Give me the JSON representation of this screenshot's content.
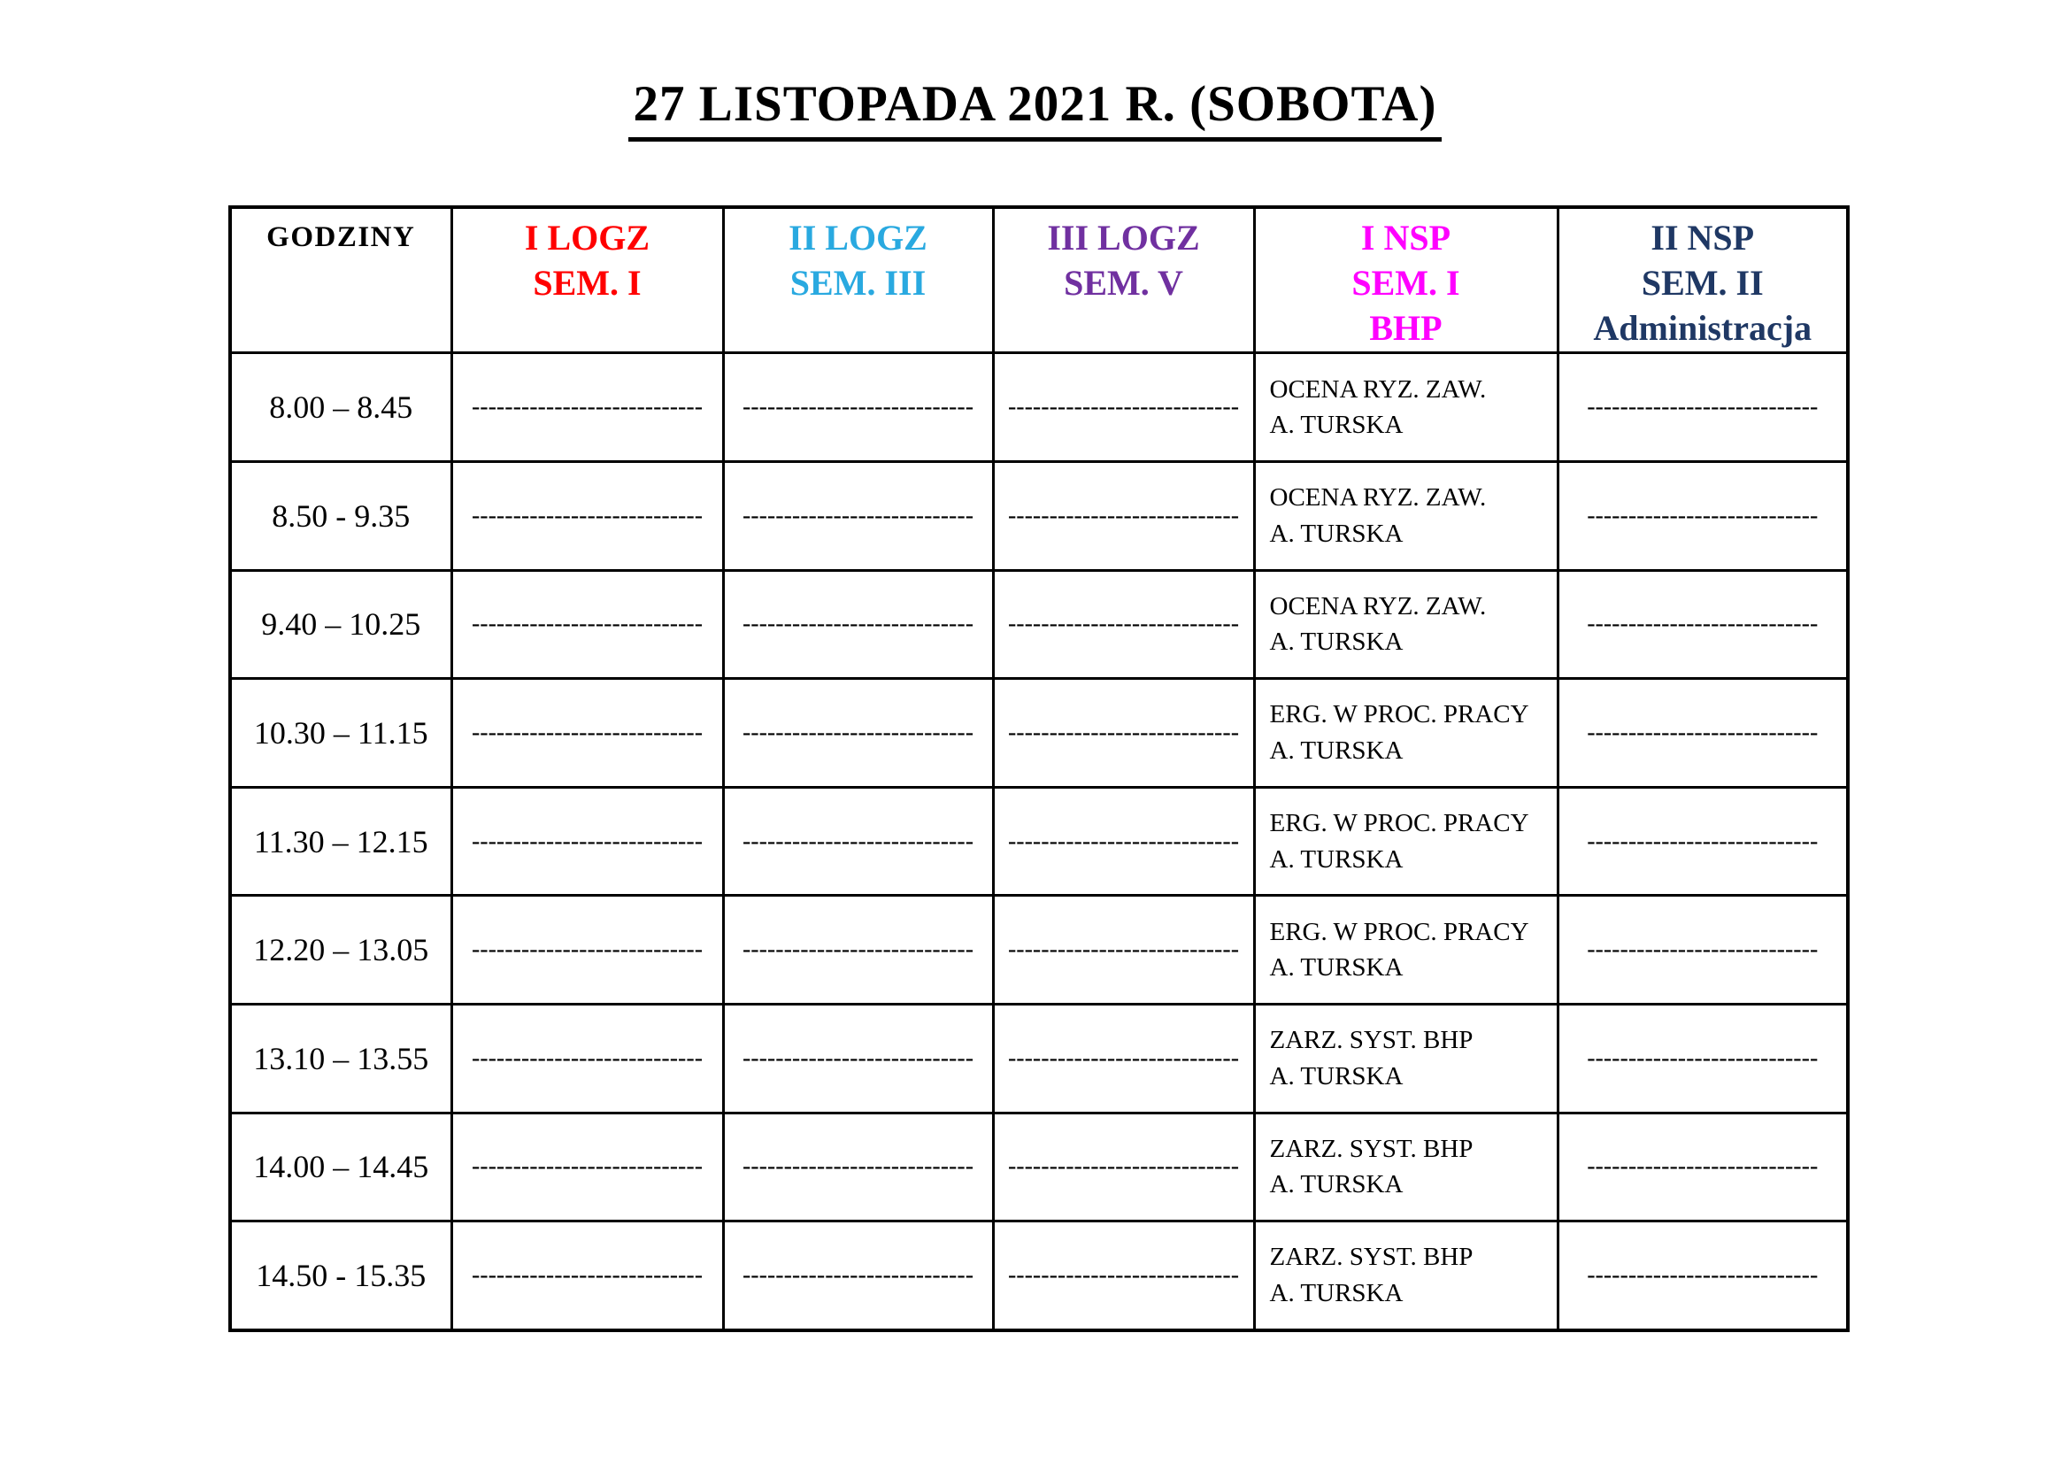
{
  "page": {
    "title": "27 LISTOPADA 2021 R. (SOBOTA)"
  },
  "table": {
    "empty_marker": "----------------------------",
    "columns": [
      {
        "id": "godziny",
        "lines": [
          "GODZINY"
        ],
        "color": "#000000"
      },
      {
        "id": "logz-1",
        "lines": [
          "I LOGZ",
          "SEM. I"
        ],
        "color": "#FF0000"
      },
      {
        "id": "logz-2",
        "lines": [
          "II LOGZ",
          "SEM. III"
        ],
        "color": "#29A9E0"
      },
      {
        "id": "logz-3",
        "lines": [
          "III LOGZ",
          "SEM. V"
        ],
        "color": "#7030A0"
      },
      {
        "id": "nsp-1",
        "lines": [
          "I NSP",
          "SEM. I",
          "BHP"
        ],
        "color": "#FF00FF"
      },
      {
        "id": "nsp-2",
        "lines": [
          "II NSP",
          "SEM. II",
          "Administracja"
        ],
        "color": "#1F3864"
      }
    ],
    "rows": [
      {
        "time": "8.00 – 8.45",
        "cells": [
          {
            "kind": "empty"
          },
          {
            "kind": "empty"
          },
          {
            "kind": "empty"
          },
          {
            "kind": "course",
            "lines": [
              "OCENA RYZ. ZAW.",
              "A. TURSKA"
            ]
          },
          {
            "kind": "empty"
          }
        ]
      },
      {
        "time": "8.50 - 9.35",
        "cells": [
          {
            "kind": "empty"
          },
          {
            "kind": "empty"
          },
          {
            "kind": "empty"
          },
          {
            "kind": "course",
            "lines": [
              "OCENA RYZ. ZAW.",
              "A. TURSKA"
            ]
          },
          {
            "kind": "empty"
          }
        ]
      },
      {
        "time": "9.40 – 10.25",
        "cells": [
          {
            "kind": "empty"
          },
          {
            "kind": "empty"
          },
          {
            "kind": "empty"
          },
          {
            "kind": "course",
            "lines": [
              "OCENA RYZ. ZAW.",
              "A. TURSKA"
            ]
          },
          {
            "kind": "empty"
          }
        ]
      },
      {
        "time": "10.30 – 11.15",
        "cells": [
          {
            "kind": "empty"
          },
          {
            "kind": "empty"
          },
          {
            "kind": "empty"
          },
          {
            "kind": "course",
            "lines": [
              "ERG. W PROC. PRACY",
              "A. TURSKA"
            ]
          },
          {
            "kind": "empty"
          }
        ]
      },
      {
        "time": "11.30 – 12.15",
        "cells": [
          {
            "kind": "empty"
          },
          {
            "kind": "empty"
          },
          {
            "kind": "empty"
          },
          {
            "kind": "course",
            "lines": [
              "ERG. W PROC. PRACY",
              "A. TURSKA"
            ]
          },
          {
            "kind": "empty"
          }
        ]
      },
      {
        "time": "12.20 – 13.05",
        "cells": [
          {
            "kind": "empty"
          },
          {
            "kind": "empty"
          },
          {
            "kind": "empty"
          },
          {
            "kind": "course",
            "lines": [
              "ERG. W PROC. PRACY",
              "A. TURSKA"
            ]
          },
          {
            "kind": "empty"
          }
        ]
      },
      {
        "time": "13.10 – 13.55",
        "cells": [
          {
            "kind": "empty"
          },
          {
            "kind": "empty"
          },
          {
            "kind": "empty"
          },
          {
            "kind": "course",
            "lines": [
              "ZARZ. SYST. BHP",
              "A. TURSKA"
            ]
          },
          {
            "kind": "empty"
          }
        ]
      },
      {
        "time": "14.00 – 14.45",
        "cells": [
          {
            "kind": "empty"
          },
          {
            "kind": "empty"
          },
          {
            "kind": "empty"
          },
          {
            "kind": "course",
            "lines": [
              "ZARZ. SYST. BHP",
              "A. TURSKA"
            ]
          },
          {
            "kind": "empty"
          }
        ]
      },
      {
        "time": "14.50 - 15.35",
        "cells": [
          {
            "kind": "empty"
          },
          {
            "kind": "empty"
          },
          {
            "kind": "empty"
          },
          {
            "kind": "course",
            "lines": [
              "ZARZ. SYST. BHP",
              "A. TURSKA"
            ]
          },
          {
            "kind": "empty"
          }
        ]
      }
    ]
  }
}
